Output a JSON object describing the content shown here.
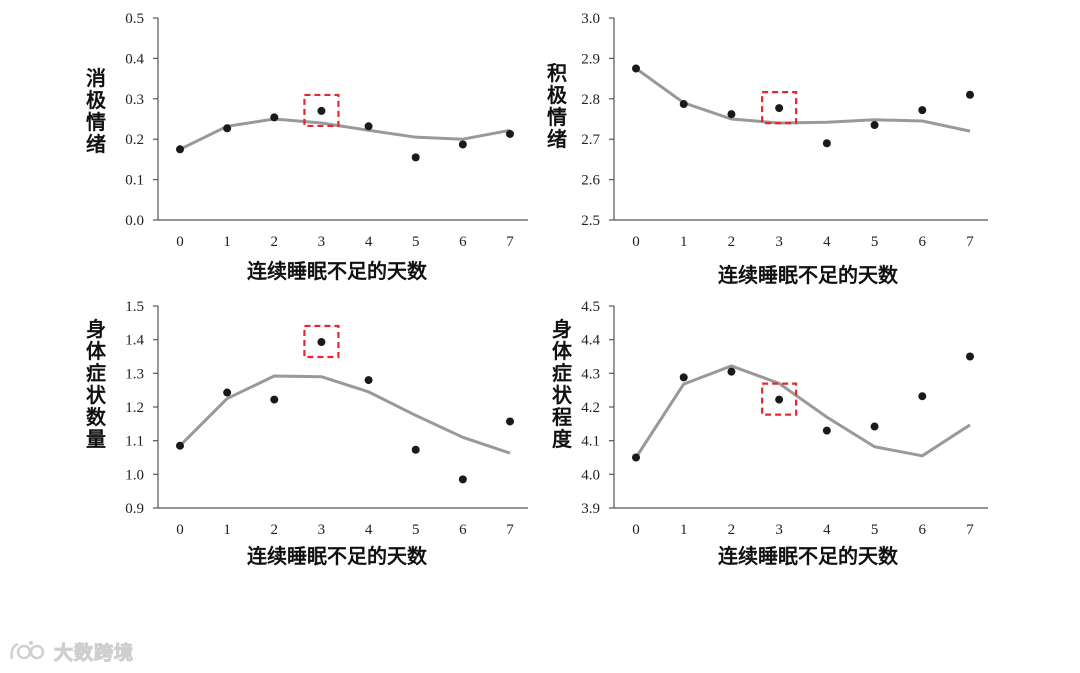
{
  "watermark": {
    "text": "大数跨境",
    "icon": "logo-icon"
  },
  "colors": {
    "trend": "#999999",
    "point": "#1a1a1a",
    "highlight": "#e8262d"
  },
  "chart_data": [
    {
      "type": "line",
      "title": "",
      "xlabel": "连续睡眠不足的天数",
      "ylabel": "消极情绪",
      "x": [
        0,
        1,
        2,
        3,
        4,
        5,
        6,
        7
      ],
      "ylim": [
        0.0,
        0.5
      ],
      "yticks": [
        "0.0",
        "0.1",
        "0.2",
        "0.3",
        "0.4",
        "0.5"
      ],
      "series": [
        {
          "kind": "line",
          "values": [
            0.175,
            0.232,
            0.25,
            0.24,
            0.222,
            0.205,
            0.2,
            0.222
          ]
        },
        {
          "kind": "scatter",
          "values": [
            0.175,
            0.227,
            0.254,
            0.27,
            0.232,
            0.155,
            0.187,
            0.213
          ]
        }
      ],
      "highlight_x": 3
    },
    {
      "type": "line",
      "title": "",
      "xlabel": "连续睡眠不足的天数",
      "ylabel": "积极情绪",
      "x": [
        0,
        1,
        2,
        3,
        4,
        5,
        6,
        7
      ],
      "ylim": [
        2.5,
        3.0
      ],
      "yticks": [
        "2.5",
        "2.6",
        "2.7",
        "2.8",
        "2.9",
        "3.0"
      ],
      "series": [
        {
          "kind": "line",
          "values": [
            2.875,
            2.79,
            2.75,
            2.74,
            2.742,
            2.748,
            2.745,
            2.72
          ]
        },
        {
          "kind": "scatter",
          "values": [
            2.875,
            2.787,
            2.762,
            2.777,
            2.69,
            2.735,
            2.772,
            2.81
          ]
        }
      ],
      "highlight_x": 3
    },
    {
      "type": "line",
      "title": "",
      "xlabel": "连续睡眠不足的天数",
      "ylabel": "身体症状数量",
      "x": [
        0,
        1,
        2,
        3,
        4,
        5,
        6,
        7
      ],
      "ylim": [
        0.9,
        1.5
      ],
      "yticks": [
        "0.9",
        "1.0",
        "1.1",
        "1.2",
        "1.3",
        "1.4",
        "1.5"
      ],
      "series": [
        {
          "kind": "line",
          "values": [
            1.085,
            1.225,
            1.292,
            1.29,
            1.245,
            1.175,
            1.11,
            1.063
          ]
        },
        {
          "kind": "scatter",
          "values": [
            1.085,
            1.243,
            1.222,
            1.393,
            1.28,
            1.073,
            0.985,
            1.157
          ]
        }
      ],
      "highlight_x": 3
    },
    {
      "type": "line",
      "title": "",
      "xlabel": "连续睡眠不足的天数",
      "ylabel": "身体症状程度",
      "x": [
        0,
        1,
        2,
        3,
        4,
        5,
        6,
        7
      ],
      "ylim": [
        3.9,
        4.5
      ],
      "yticks": [
        "3.9",
        "4.0",
        "4.1",
        "4.2",
        "4.3",
        "4.4",
        "4.5"
      ],
      "series": [
        {
          "kind": "line",
          "values": [
            4.05,
            4.268,
            4.322,
            4.27,
            4.17,
            4.082,
            4.055,
            4.147
          ]
        },
        {
          "kind": "scatter",
          "values": [
            4.05,
            4.288,
            4.305,
            4.222,
            4.13,
            4.142,
            4.232,
            4.35
          ]
        }
      ],
      "highlight_x": 3
    }
  ]
}
